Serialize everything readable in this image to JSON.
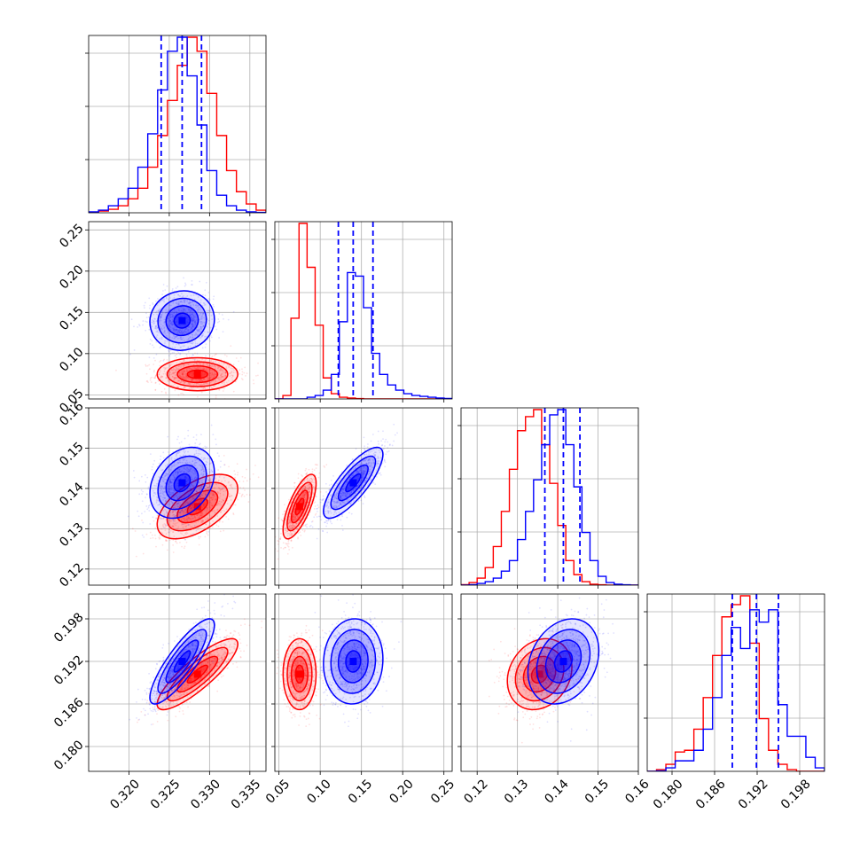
{
  "chart_data": {
    "type": "corner",
    "grid": true,
    "colors": {
      "series_a": "#0000ff",
      "series_b": "#ff0000"
    },
    "params": [
      {
        "range": [
          0.315,
          0.337
        ],
        "ticks": [
          0.32,
          0.325,
          0.33,
          0.335
        ],
        "tick_labels": [
          "0.320",
          "0.325",
          "0.330",
          "0.335"
        ],
        "quantiles_a": [
          0.324,
          0.3266,
          0.329
        ],
        "center_a": 0.3266,
        "sd_a": 0.002,
        "center_b": 0.3285,
        "sd_b": 0.0025,
        "hist_a": [
          0.5,
          1.5,
          4,
          8,
          14,
          26,
          45,
          70,
          92,
          100,
          78,
          50,
          24,
          10,
          4,
          1.5,
          0.5,
          0.2
        ],
        "hist_b": [
          0.3,
          1,
          2,
          4,
          8,
          14,
          26,
          44,
          64,
          84,
          100,
          92,
          68,
          44,
          24,
          12,
          5,
          1.5
        ]
      },
      {
        "range": [
          0.045,
          0.26
        ],
        "ticks": [
          0.05,
          0.1,
          0.15,
          0.2,
          0.25
        ],
        "tick_labels": [
          "0.05",
          "0.10",
          "0.15",
          "0.20",
          "0.25"
        ],
        "quantiles_a": [
          0.122,
          0.14,
          0.164
        ],
        "center_a": 0.14,
        "sd_a": 0.018,
        "center_b": 0.075,
        "sd_b": 0.01,
        "hist_a": [
          0,
          0,
          0,
          0,
          1,
          2,
          5,
          14,
          44,
          72,
          70,
          52,
          26,
          14,
          8,
          5,
          3,
          2,
          1.5,
          1,
          0.5,
          0.3
        ],
        "hist_b": [
          0,
          2,
          46,
          100,
          75,
          42,
          12,
          3,
          1,
          0.5,
          0.2,
          0,
          0,
          0,
          0,
          0,
          0,
          0,
          0,
          0,
          0,
          0
        ]
      },
      {
        "range": [
          0.116,
          0.16
        ],
        "ticks": [
          0.12,
          0.13,
          0.14,
          0.15,
          0.16
        ],
        "tick_labels": [
          "0.12",
          "0.13",
          "0.14",
          "0.15",
          "0.16"
        ],
        "quantiles_a": [
          0.1368,
          0.1414,
          0.1455
        ],
        "center_a": 0.1414,
        "sd_a": 0.0044,
        "center_b": 0.1355,
        "sd_b": 0.004,
        "hist_a": [
          0,
          0.3,
          1,
          2,
          4,
          8,
          14,
          26,
          42,
          60,
          80,
          97,
          100,
          80,
          56,
          30,
          14,
          5,
          1.5,
          0.5,
          0.2,
          0
        ],
        "hist_b": [
          0.3,
          1.5,
          4,
          10,
          22,
          42,
          66,
          88,
          96,
          100,
          80,
          58,
          34,
          14,
          6,
          2,
          0.5,
          0.2,
          0,
          0,
          0,
          0
        ]
      },
      {
        "range": [
          0.1765,
          0.2015
        ],
        "ticks": [
          0.18,
          0.186,
          0.192,
          0.198
        ],
        "tick_labels": [
          "0.180",
          "0.186",
          "0.192",
          "0.198"
        ],
        "quantiles_a": [
          0.1885,
          0.1919,
          0.195
        ],
        "center_a": 0.192,
        "sd_a": 0.003,
        "center_b": 0.1902,
        "sd_b": 0.0025,
        "hist_a": [
          0,
          0.3,
          2,
          6,
          6,
          12,
          24,
          42,
          66,
          82,
          70,
          92,
          85,
          92,
          38,
          20,
          20,
          8,
          2
        ],
        "hist_b": [
          0,
          1,
          4,
          11,
          12,
          24,
          42,
          66,
          88,
          95,
          100,
          73,
          30,
          12,
          4,
          1,
          0,
          0,
          0
        ]
      }
    ],
    "correlations": {
      "a": {
        "1-0": 0.05,
        "2-0": 0.3,
        "2-1": 0.8,
        "3-0": 0.85,
        "3-1": 0.05,
        "3-2": 0.25
      },
      "b": {
        "1-0": 0.0,
        "2-0": 0.55,
        "2-1": 0.72,
        "3-0": 0.85,
        "3-1": 0.0,
        "3-2": 0.2
      }
    }
  }
}
